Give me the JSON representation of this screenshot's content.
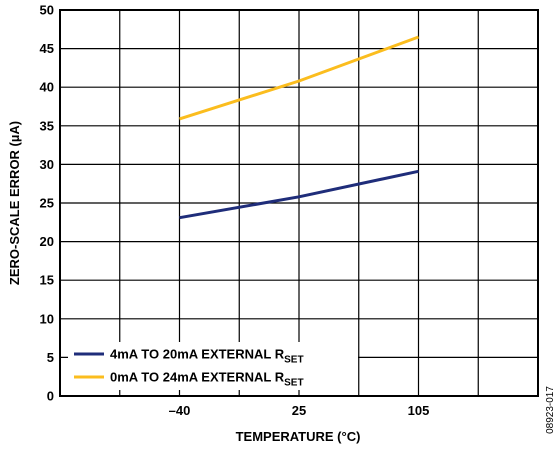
{
  "chart_data": {
    "type": "line",
    "xlabel": "TEMPERATURE (°C)",
    "ylabel": "ZERO-SCALE ERROR (µA)",
    "x_categories": [
      "–40",
      "25",
      "105"
    ],
    "x_positions": [
      1,
      2,
      3
    ],
    "xlim": [
      0,
      4
    ],
    "ylim": [
      0,
      50
    ],
    "y_ticks": [
      0,
      5,
      10,
      15,
      20,
      25,
      30,
      35,
      40,
      45,
      50
    ],
    "grid": true,
    "legend_position": "bottom-left",
    "series": [
      {
        "name_main": "4mA TO 20mA EXTERNAL R",
        "name_sub": "SET",
        "color": "#1f2d7a",
        "x": [
          1,
          2,
          3
        ],
        "values": [
          23.1,
          25.8,
          29.1
        ]
      },
      {
        "name_main": "0mA TO 24mA EXTERNAL R",
        "name_sub": "SET",
        "color": "#fbbd1e",
        "x": [
          1,
          2,
          3
        ],
        "values": [
          35.9,
          40.8,
          46.5
        ]
      }
    ],
    "figure_id": "08923-017"
  }
}
